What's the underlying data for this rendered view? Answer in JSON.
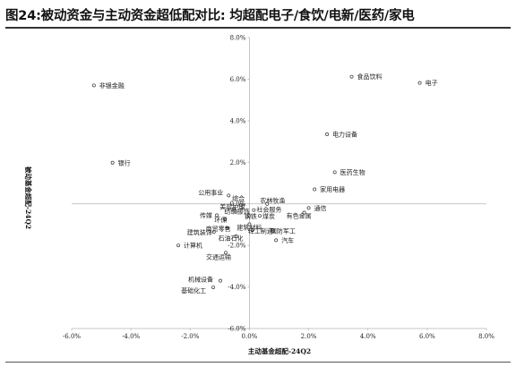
{
  "title": "图24:被动资金与主动资金超低配对比: 均超配电子/食饮/电新/医药/家电",
  "chart_data": {
    "type": "scatter",
    "title": "图24:被动资金与主动资金超低配对比: 均超配电子/食饮/电新/医药/家电",
    "xlabel": "主动基金超配-24Q2",
    "ylabel": "被动基金超配-24Q2",
    "xlim": [
      -0.06,
      0.08
    ],
    "ylim": [
      -0.06,
      0.08
    ],
    "x_ticks": [
      "-6.0%",
      "-4.0%",
      "-2.0%",
      "0.0%",
      "2.0%",
      "4.0%",
      "6.0%",
      "8.0%"
    ],
    "y_ticks": [
      "-6.0%",
      "-4.0%",
      "-2.0%",
      "0.0%",
      "2.0%",
      "4.0%",
      "6.0%",
      "8.0%"
    ],
    "tick_values": [
      -0.06,
      -0.04,
      -0.02,
      0.0,
      0.02,
      0.04,
      0.06,
      0.08
    ],
    "grid": false,
    "points": [
      {
        "label": "非银金融",
        "x": -0.0525,
        "y": 0.057
      },
      {
        "label": "食品饮料",
        "x": 0.0345,
        "y": 0.0612
      },
      {
        "label": "电子",
        "x": 0.0575,
        "y": 0.0582
      },
      {
        "label": "电力设备",
        "x": 0.0262,
        "y": 0.0335
      },
      {
        "label": "银行",
        "x": -0.0462,
        "y": 0.0198
      },
      {
        "label": "医药生物",
        "x": 0.0288,
        "y": 0.0152
      },
      {
        "label": "家用电器",
        "x": 0.022,
        "y": 0.007
      },
      {
        "label": "公用事业",
        "x": -0.007,
        "y": 0.004
      },
      {
        "label": "农林牧渔",
        "x": 0.006,
        "y": 0.0
      },
      {
        "label": "通信",
        "x": 0.02,
        "y": -0.002
      },
      {
        "label": "有色金属",
        "x": 0.0185,
        "y": -0.0042
      },
      {
        "label": "综合",
        "x": -0.0028,
        "y": -0.0005
      },
      {
        "label": "美容护理",
        "x": -0.0052,
        "y": -0.0025
      },
      {
        "label": "纺织服饰",
        "x": -0.0048,
        "y": -0.0038
      },
      {
        "label": "社会服务",
        "x": 0.0015,
        "y": -0.003
      },
      {
        "label": "传媒",
        "x": -0.011,
        "y": -0.0055
      },
      {
        "label": "钢铁",
        "x": -0.0002,
        "y": -0.0058
      },
      {
        "label": "煤炭",
        "x": 0.0035,
        "y": -0.0058
      },
      {
        "label": "环保",
        "x": -0.0082,
        "y": -0.0075
      },
      {
        "label": "建筑材料",
        "x": 0.0,
        "y": -0.0098
      },
      {
        "label": "商贸零售",
        "x": -0.0075,
        "y": -0.0118
      },
      {
        "label": "轻工制造",
        "x": 0.001,
        "y": -0.0125
      },
      {
        "label": "国防军工",
        "x": 0.008,
        "y": -0.0128
      },
      {
        "label": "建筑装饰",
        "x": -0.012,
        "y": -0.0135
      },
      {
        "label": "石油石化",
        "x": -0.0045,
        "y": -0.0155
      },
      {
        "label": "汽车",
        "x": 0.009,
        "y": -0.0175
      },
      {
        "label": "计算机",
        "x": -0.024,
        "y": -0.02
      },
      {
        "label": "交通运输",
        "x": -0.008,
        "y": -0.0235
      },
      {
        "label": "机械设备",
        "x": -0.0098,
        "y": -0.037
      },
      {
        "label": "基础化工",
        "x": -0.0122,
        "y": -0.0402
      }
    ]
  }
}
